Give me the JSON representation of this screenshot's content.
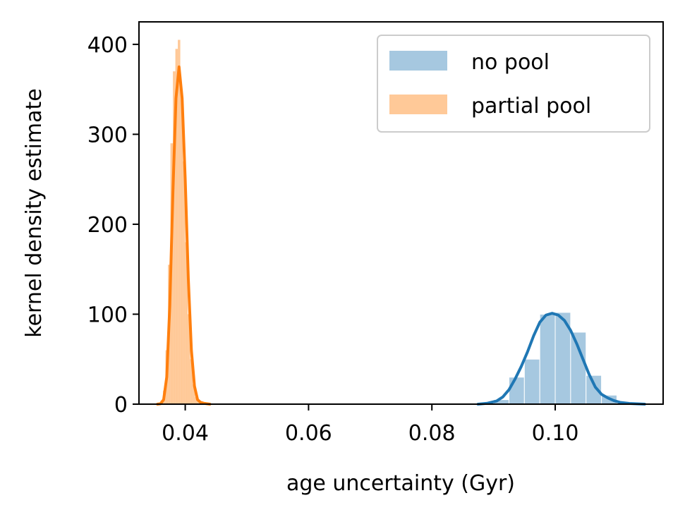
{
  "chart_data": {
    "type": "area",
    "xlabel": "age uncertainty (Gyr)",
    "ylabel": "kernel density estimate",
    "xlim": [
      0.0325,
      0.1175
    ],
    "ylim": [
      0,
      425
    ],
    "xticks": [
      0.04,
      0.06,
      0.08,
      0.1
    ],
    "xtick_labels": [
      "0.04",
      "0.06",
      "0.08",
      "0.10"
    ],
    "yticks": [
      0,
      100,
      200,
      300,
      400
    ],
    "ytick_labels": [
      "0",
      "100",
      "200",
      "300",
      "400"
    ],
    "grid": false,
    "legend_position": "top-right",
    "series": [
      {
        "name": "no pool",
        "hist_color": "#a6c8e0",
        "line_color": "#1f77b4",
        "bin_width": 0.0025,
        "bins": [
          {
            "x0": 0.09,
            "h": 5
          },
          {
            "x0": 0.0925,
            "h": 30
          },
          {
            "x0": 0.095,
            "h": 50
          },
          {
            "x0": 0.0975,
            "h": 100
          },
          {
            "x0": 0.1,
            "h": 102
          },
          {
            "x0": 0.1025,
            "h": 80
          },
          {
            "x0": 0.105,
            "h": 32
          },
          {
            "x0": 0.1075,
            "h": 10
          }
        ],
        "kde": [
          [
            0.0875,
            0.0
          ],
          [
            0.089,
            1.0
          ],
          [
            0.0905,
            3.5
          ],
          [
            0.0915,
            8
          ],
          [
            0.0925,
            16
          ],
          [
            0.0935,
            28
          ],
          [
            0.0945,
            42
          ],
          [
            0.0955,
            58
          ],
          [
            0.0965,
            76
          ],
          [
            0.0975,
            91
          ],
          [
            0.0985,
            99
          ],
          [
            0.0995,
            101
          ],
          [
            0.1005,
            99
          ],
          [
            0.1015,
            93
          ],
          [
            0.1025,
            82
          ],
          [
            0.1035,
            67
          ],
          [
            0.1045,
            50
          ],
          [
            0.1055,
            33
          ],
          [
            0.1065,
            19
          ],
          [
            0.1075,
            11
          ],
          [
            0.1085,
            7
          ],
          [
            0.1095,
            4
          ],
          [
            0.1105,
            2
          ],
          [
            0.112,
            0.8
          ],
          [
            0.1145,
            0.0
          ]
        ]
      },
      {
        "name": "partial pool",
        "hist_color": "#ffc998",
        "line_color": "#ff7f0e",
        "bin_width": 0.0004,
        "bins": [
          {
            "x0": 0.036,
            "h": 4
          },
          {
            "x0": 0.0364,
            "h": 15
          },
          {
            "x0": 0.0368,
            "h": 60
          },
          {
            "x0": 0.0372,
            "h": 155
          },
          {
            "x0": 0.0376,
            "h": 290
          },
          {
            "x0": 0.038,
            "h": 370
          },
          {
            "x0": 0.0384,
            "h": 395
          },
          {
            "x0": 0.0388,
            "h": 405
          },
          {
            "x0": 0.0392,
            "h": 350
          },
          {
            "x0": 0.0396,
            "h": 270
          },
          {
            "x0": 0.04,
            "h": 180
          },
          {
            "x0": 0.0404,
            "h": 100
          },
          {
            "x0": 0.0408,
            "h": 50
          },
          {
            "x0": 0.0412,
            "h": 22
          },
          {
            "x0": 0.0416,
            "h": 8
          },
          {
            "x0": 0.042,
            "h": 4
          },
          {
            "x0": 0.0424,
            "h": 3
          }
        ],
        "kde": [
          [
            0.0355,
            0.0
          ],
          [
            0.036,
            0.5
          ],
          [
            0.0365,
            5
          ],
          [
            0.037,
            30
          ],
          [
            0.0375,
            110
          ],
          [
            0.038,
            235
          ],
          [
            0.0385,
            340
          ],
          [
            0.039,
            375
          ],
          [
            0.0395,
            340
          ],
          [
            0.04,
            250
          ],
          [
            0.0405,
            140
          ],
          [
            0.041,
            60
          ],
          [
            0.0415,
            20
          ],
          [
            0.042,
            5
          ],
          [
            0.0425,
            2
          ],
          [
            0.043,
            1
          ],
          [
            0.0435,
            0.5
          ],
          [
            0.044,
            0.0
          ]
        ]
      }
    ]
  }
}
